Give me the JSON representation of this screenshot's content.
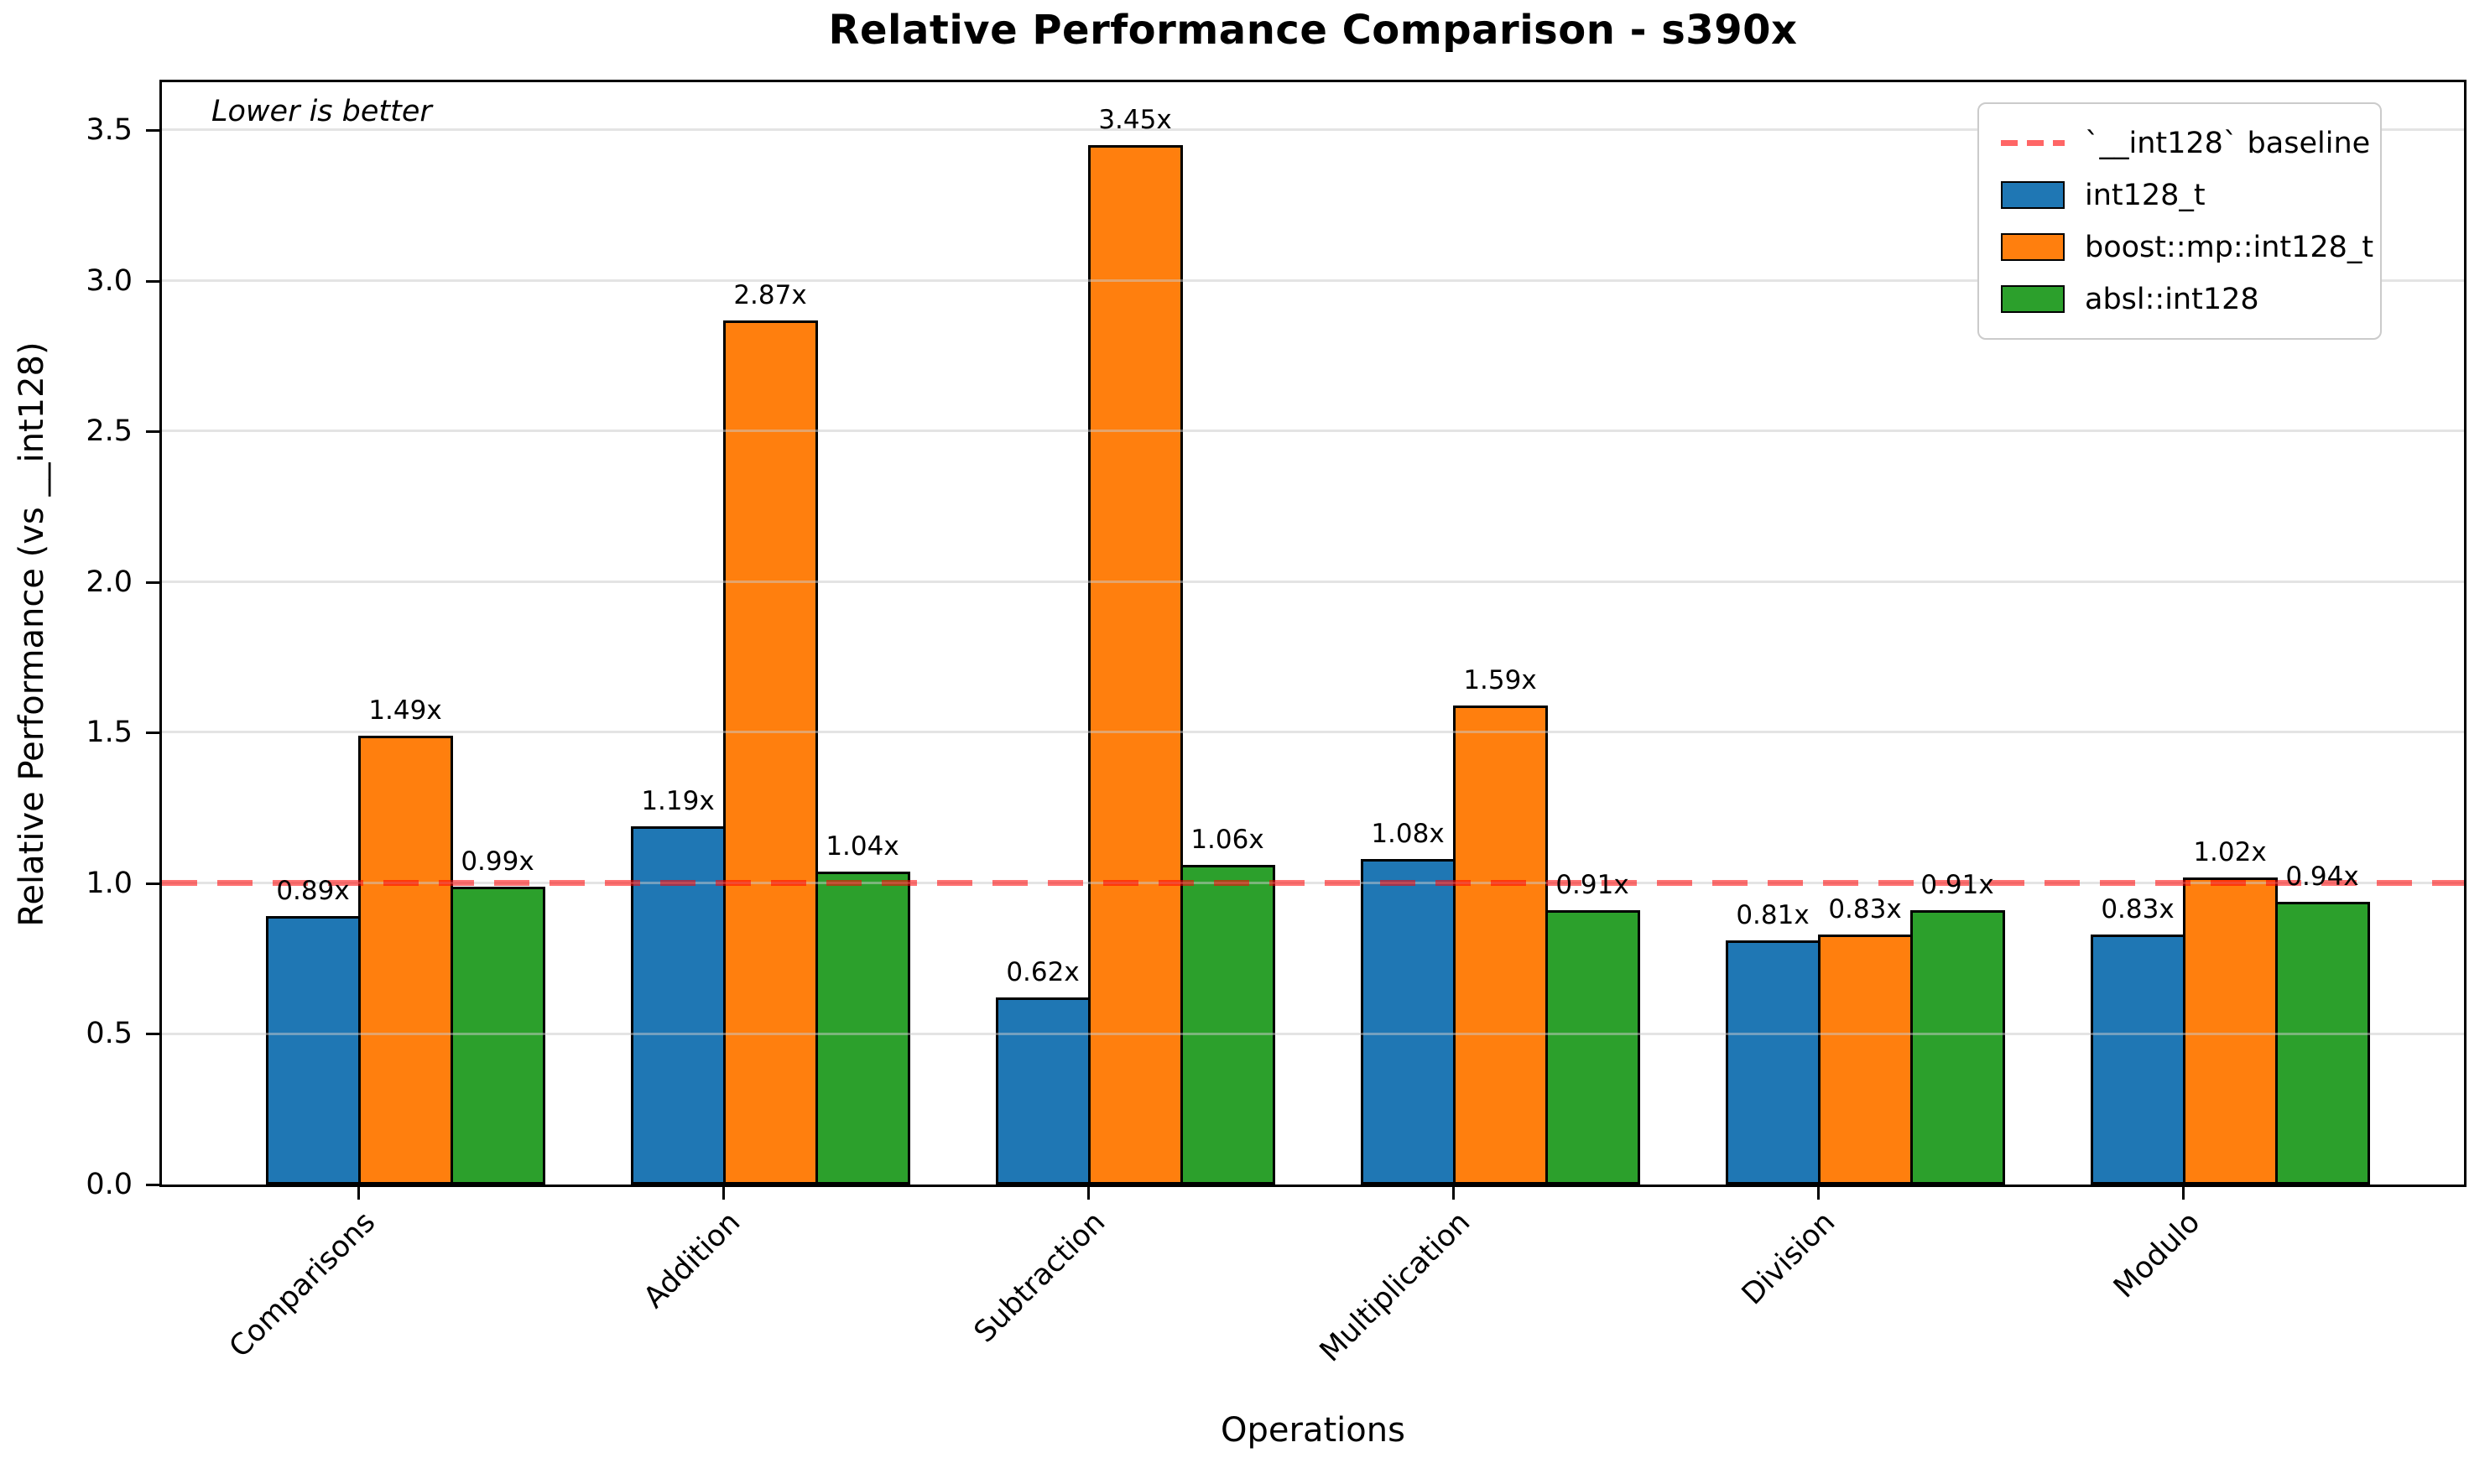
{
  "chart_data": {
    "type": "bar",
    "title": "Relative Performance Comparison - s390x",
    "xlabel": "Operations",
    "ylabel": "Relative Performance (vs __int128)",
    "annotation": "Lower is better",
    "categories": [
      "Comparisons",
      "Addition",
      "Subtraction",
      "Multiplication",
      "Division",
      "Modulo"
    ],
    "series": [
      {
        "name": "int128_t",
        "color": "#1f77b4",
        "values": [
          0.89,
          1.19,
          0.62,
          1.08,
          0.81,
          0.83
        ]
      },
      {
        "name": "boost::mp::int128_t",
        "color": "#ff7f0e",
        "values": [
          1.49,
          2.87,
          3.45,
          1.59,
          0.83,
          1.02
        ]
      },
      {
        "name": "absl::int128",
        "color": "#2ca02c",
        "values": [
          0.99,
          1.04,
          1.06,
          0.91,
          0.91,
          0.94
        ]
      }
    ],
    "bar_label_suffix": "x",
    "bar_labels": [
      [
        "0.89x",
        "1.19x",
        "0.62x",
        "1.08x",
        "0.81x",
        "0.83x"
      ],
      [
        "1.49x",
        "2.87x",
        "3.45x",
        "1.59x",
        "0.83x",
        "1.02x"
      ],
      [
        "0.99x",
        "1.04x",
        "1.06x",
        "0.91x",
        "0.91x",
        "0.94x"
      ]
    ],
    "baseline": {
      "value": 1.0,
      "label": "`__int128` baseline",
      "color": "#ff0000",
      "opacity": 0.55,
      "style": "dashed"
    },
    "yticks": [
      "0.0",
      "0.5",
      "1.0",
      "1.5",
      "2.0",
      "2.5",
      "3.0",
      "3.5"
    ],
    "ylim": [
      0,
      3.66
    ],
    "grid": true,
    "legend_position": "upper right",
    "edge_color": "#000000",
    "background_color": "#ffffff"
  }
}
